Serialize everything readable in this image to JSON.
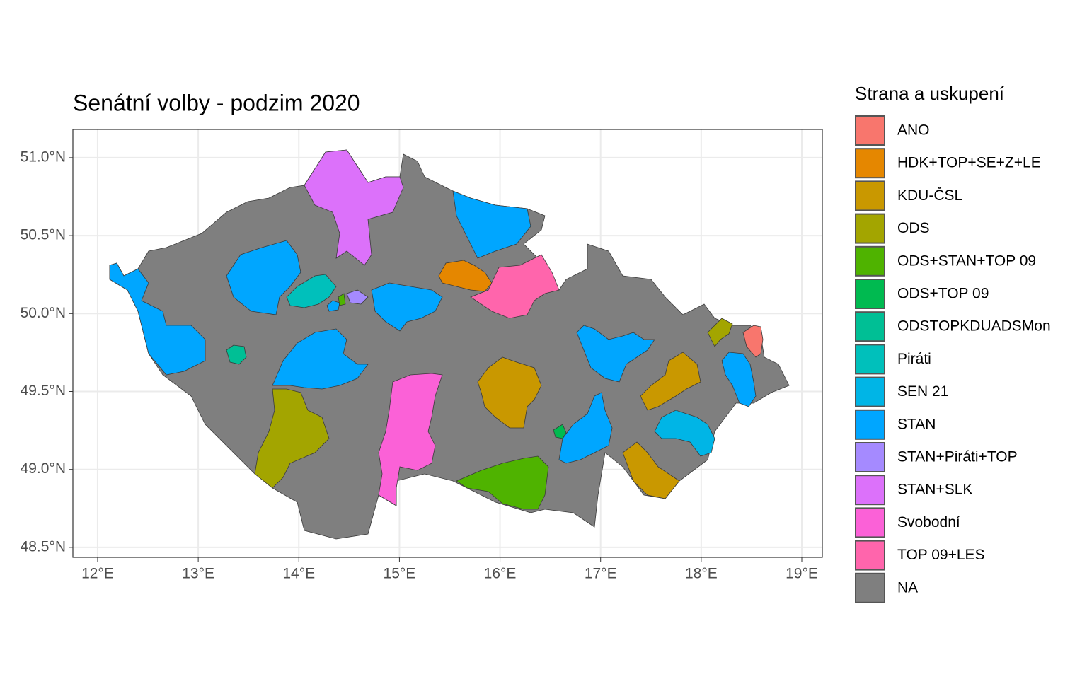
{
  "chart_data": {
    "type": "map",
    "title": "Senátní volby - podzim 2020",
    "xlim": [
      11.754,
      19.204
    ],
    "ylim": [
      48.436,
      51.181
    ],
    "xticks": [
      {
        "value": 12,
        "label": "12°E"
      },
      {
        "value": 13,
        "label": "13°E"
      },
      {
        "value": 14,
        "label": "14°E"
      },
      {
        "value": 15,
        "label": "15°E"
      },
      {
        "value": 16,
        "label": "16°E"
      },
      {
        "value": 17,
        "label": "17°E"
      },
      {
        "value": 18,
        "label": "18°E"
      },
      {
        "value": 19,
        "label": "19°E"
      }
    ],
    "yticks": [
      {
        "value": 48.5,
        "label": "48.5°N"
      },
      {
        "value": 49.0,
        "label": "49.0°N"
      },
      {
        "value": 49.5,
        "label": "49.5°N"
      },
      {
        "value": 50.0,
        "label": "50.0°N"
      },
      {
        "value": 50.5,
        "label": "50.5°N"
      },
      {
        "value": 51.0,
        "label": "51.0°N"
      }
    ],
    "grid": true,
    "legend": {
      "title": "Strana a uskupení",
      "position": "right",
      "items": [
        {
          "name": "ANO",
          "color": "#F8766D"
        },
        {
          "name": "HDK+TOP+SE+Z+LE",
          "color": "#E58700"
        },
        {
          "name": "KDU-ČSL",
          "color": "#C99800"
        },
        {
          "name": "ODS",
          "color": "#A3A500"
        },
        {
          "name": "ODS+STAN+TOP 09",
          "color": "#4FB300"
        },
        {
          "name": "ODS+TOP 09",
          "color": "#00BA50"
        },
        {
          "name": "ODSTOPKDUADSMon",
          "color": "#00BF95"
        },
        {
          "name": "Piráti",
          "color": "#00C0BB"
        },
        {
          "name": "SEN 21",
          "color": "#00B5E6"
        },
        {
          "name": "STAN",
          "color": "#00A6FF"
        },
        {
          "name": "STAN+Piráti+TOP",
          "color": "#A58AFF"
        },
        {
          "name": "STAN+SLK",
          "color": "#DC71FA"
        },
        {
          "name": "Svobodní",
          "color": "#FB61D7"
        },
        {
          "name": "TOP 09+LES",
          "color": "#FF65AC"
        },
        {
          "name": "NA",
          "color": "#7F7F7F"
        }
      ]
    }
  }
}
